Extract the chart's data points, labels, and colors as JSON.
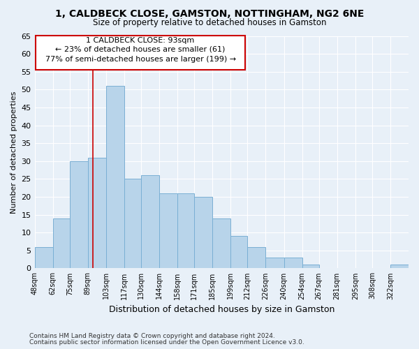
{
  "title1": "1, CALDBECK CLOSE, GAMSTON, NOTTINGHAM, NG2 6NE",
  "title2": "Size of property relative to detached houses in Gamston",
  "xlabel": "Distribution of detached houses by size in Gamston",
  "ylabel": "Number of detached properties",
  "bar_labels": [
    "48sqm",
    "62sqm",
    "75sqm",
    "89sqm",
    "103sqm",
    "117sqm",
    "130sqm",
    "144sqm",
    "158sqm",
    "171sqm",
    "185sqm",
    "199sqm",
    "212sqm",
    "226sqm",
    "240sqm",
    "254sqm",
    "267sqm",
    "281sqm",
    "295sqm",
    "308sqm",
    "322sqm"
  ],
  "bar_values": [
    6,
    14,
    30,
    31,
    51,
    25,
    26,
    21,
    21,
    20,
    14,
    9,
    6,
    3,
    3,
    1,
    0,
    0,
    0,
    0,
    1
  ],
  "bar_color": "#b8d4ea",
  "bar_edge_color": "#7aafd4",
  "property_line_x": 93,
  "property_label": "1 CALDBECK CLOSE: 93sqm",
  "annotation_line1": "← 23% of detached houses are smaller (61)",
  "annotation_line2": "77% of semi-detached houses are larger (199) →",
  "vline_color": "#cc0000",
  "box_edge_color": "#cc0000",
  "ylim": [
    0,
    65
  ],
  "yticks": [
    0,
    5,
    10,
    15,
    20,
    25,
    30,
    35,
    40,
    45,
    50,
    55,
    60,
    65
  ],
  "background_color": "#e8f0f8",
  "plot_bg_color": "#e8f0f8",
  "grid_color": "#ffffff",
  "footnote1": "Contains HM Land Registry data © Crown copyright and database right 2024.",
  "footnote2": "Contains public sector information licensed under the Open Government Licence v3.0.",
  "bin_starts": [
    48,
    62,
    75,
    89,
    103,
    117,
    130,
    144,
    158,
    171,
    185,
    199,
    212,
    226,
    240,
    254,
    267,
    281,
    295,
    308,
    322
  ]
}
